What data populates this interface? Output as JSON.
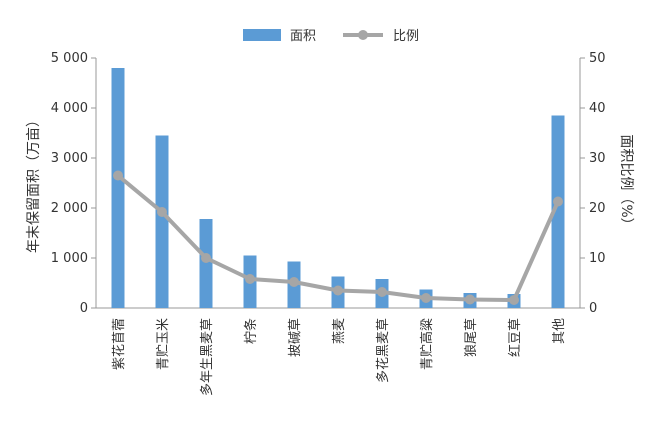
{
  "chart_data": {
    "type": "bar",
    "categories": [
      "紫花苜蓿",
      "青贮玉米",
      "多年生黑麦草",
      "柠条",
      "披碱草",
      "燕麦",
      "多花黑麦草",
      "青贮高粱",
      "狼尾草",
      "红豆草",
      "其他"
    ],
    "series": [
      {
        "name": "面积",
        "type": "bar",
        "axis": "left",
        "values": [
          4800,
          3450,
          1780,
          1050,
          930,
          630,
          580,
          370,
          300,
          280,
          3850
        ]
      },
      {
        "name": "比例",
        "type": "line",
        "axis": "right",
        "values": [
          26.5,
          19.2,
          10.0,
          5.8,
          5.2,
          3.5,
          3.2,
          2.0,
          1.7,
          1.6,
          21.3
        ]
      }
    ],
    "ylabel": "年末保留面积（万亩）",
    "y2label": "面积比例（%）",
    "ylim": [
      0,
      5000
    ],
    "y2lim": [
      0,
      50
    ],
    "yticks": [
      "0",
      "1 000",
      "2 000",
      "3 000",
      "4 000",
      "5 000"
    ],
    "y2ticks": [
      "0",
      "10",
      "20",
      "30",
      "40",
      "50"
    ],
    "legend_position": "top-center",
    "grid": false,
    "colors": {
      "bar": "#5b9bd5",
      "line": "#a6a6a6",
      "axis": "#999999"
    }
  }
}
